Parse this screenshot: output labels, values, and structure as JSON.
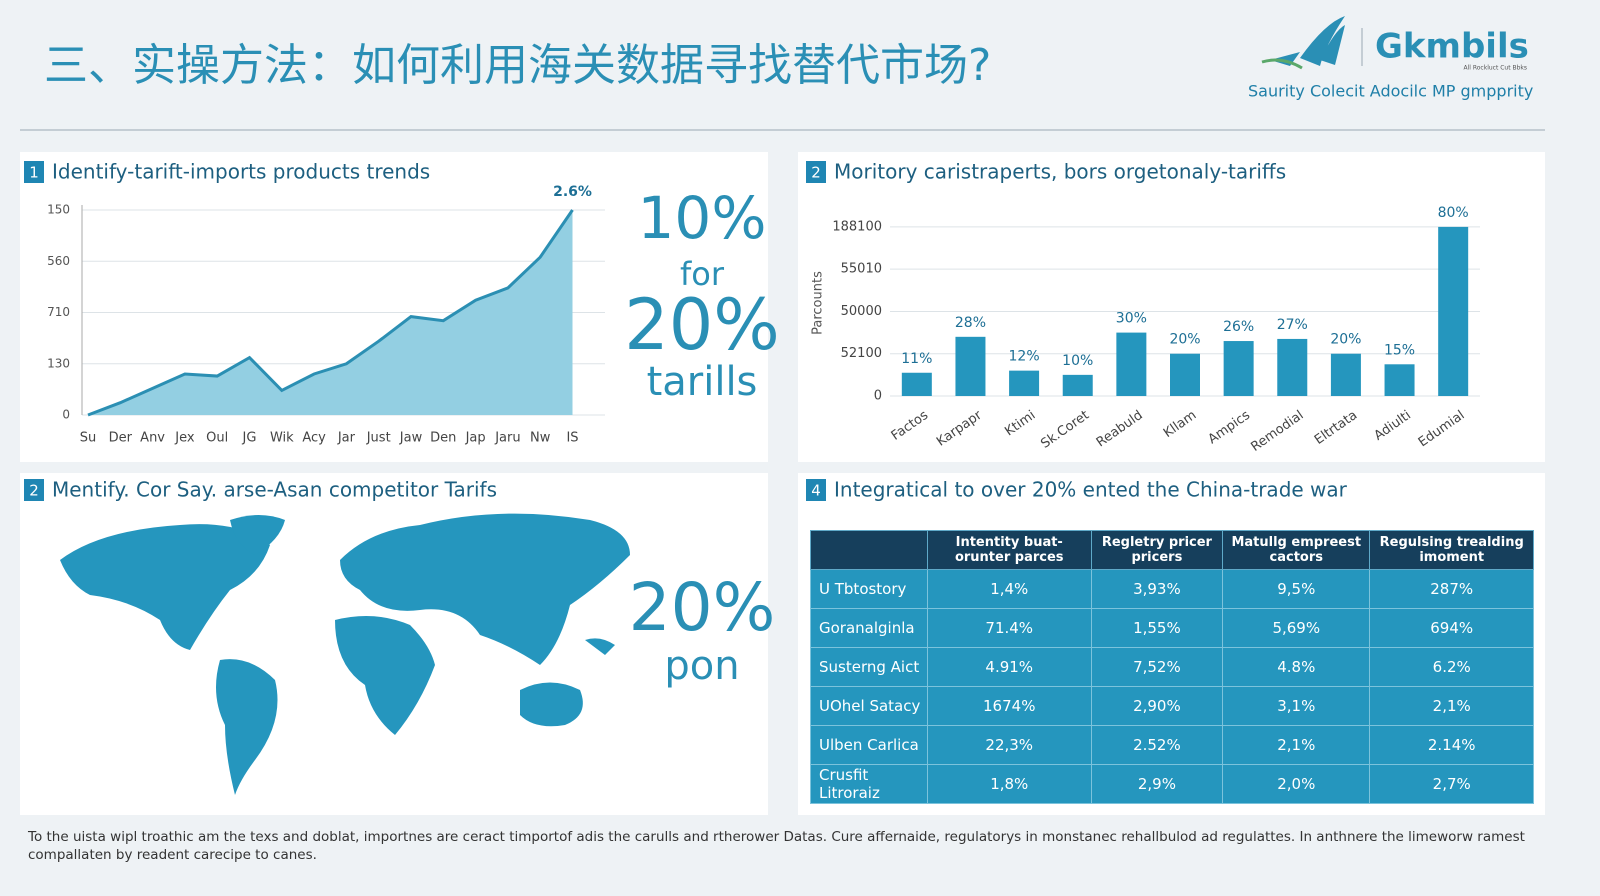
{
  "header": {
    "title": "三、实操方法：如何利用海关数据寻找替代市场?",
    "logo": "Gkmbils",
    "logo_small": "All Rockluct Cut Bbks",
    "tagline": "Saurity Colecit Adocilc MP gmpprity"
  },
  "panels": [
    {
      "number": "1",
      "title": "Identify-tarift-imports products trends"
    },
    {
      "number": "2",
      "title": "Moritory caristraperts, bors orgetonaly-tariffs"
    },
    {
      "number": "2",
      "title": "Mentify. Cor Say. arse-Asan competitor Tarifs"
    },
    {
      "number": "4",
      "title": "Integratical to over 20% ented the China-trade war"
    }
  ],
  "chart_data": [
    {
      "type": "area",
      "categories": [
        "Su",
        "Der",
        "Anv",
        "Jex",
        "Oul",
        "JG",
        "Wik",
        "Acy",
        "Jar",
        "Just",
        "Jaw",
        "Den",
        "Jap",
        "Jaru",
        "Nw",
        "IS"
      ],
      "values": [
        0,
        6,
        13,
        20,
        19,
        28,
        12,
        20,
        25,
        36,
        48,
        46,
        56,
        62,
        77,
        100
      ],
      "color": "#2b8fb3",
      "fill": "#93cfe2",
      "ylim": [
        0,
        100
      ],
      "yticks": [
        0,
        {
          "value": 25,
          "label": "130"
        },
        {
          "value": 50,
          "label": "710"
        },
        {
          "value": 75,
          "label": "560"
        },
        {
          "value": 100,
          "label": "150"
        }
      ],
      "grid": true,
      "annotation": "2.6%"
    },
    {
      "type": "bar",
      "ylabel": "Parcounts",
      "categories": [
        "Factos",
        "Karpapr",
        "Ktimi",
        "Sk.Coret",
        "Reabuld",
        "Kllam",
        "Ampics",
        "Remodial",
        "Eltrtata",
        "Adiulti",
        "Edumial"
      ],
      "values": [
        11,
        28,
        12,
        10,
        30,
        20,
        26,
        27,
        20,
        15,
        80
      ],
      "value_labels": [
        "11%",
        "28%",
        "12%",
        "10%",
        "30%",
        "20%",
        "26%",
        "27%",
        "20%",
        "15%",
        "80%"
      ],
      "color": "#2596be",
      "ylim": [
        0,
        88
      ],
      "yticks": [
        0,
        {
          "value": 20,
          "label": "52100"
        },
        {
          "value": 40,
          "label": "50000"
        },
        {
          "value": 60,
          "label": "55010"
        },
        {
          "value": 80,
          "label": "188100"
        }
      ],
      "grid": true
    }
  ],
  "callouts": {
    "line": [
      "10%",
      "for",
      "20%",
      "tarills"
    ],
    "map": [
      "20%",
      "pon"
    ]
  },
  "table": {
    "header": [
      "Intentity buat- orunter parces",
      "Regletry pricer pricers",
      "Matullg empreest cactors",
      "Regulsing trealding imoment"
    ],
    "rows": [
      [
        "U Tbtostory",
        "1,4%",
        "3,93%",
        "9,5%",
        "287%"
      ],
      [
        "Goranalginla",
        "71.4%",
        "1,55%",
        "5,69%",
        "694%"
      ],
      [
        "Susterng Aict",
        "4.91%",
        "7,52%",
        "4.8%",
        "6.2%"
      ],
      [
        "UOhel Satacy",
        "1674%",
        "2,90%",
        "3,1%",
        "2,1%"
      ],
      [
        "Ulben Carlica",
        "22,3%",
        "2.52%",
        "2,1%",
        "2.14%"
      ],
      [
        "Crusfit Litroraiz",
        "1,8%",
        "2,9%",
        "2,0%",
        "2,7%"
      ]
    ]
  },
  "footer": "To the uista wipl troathic am the texs and doblat, importnes are ceract timportof adis the carulls and rtherower Datas. Cure affernaide, regulatorys in monstanec rehallbulod ad regulattes. In anthnere the limeworw ramest compallaten by readent carecipe to canes."
}
